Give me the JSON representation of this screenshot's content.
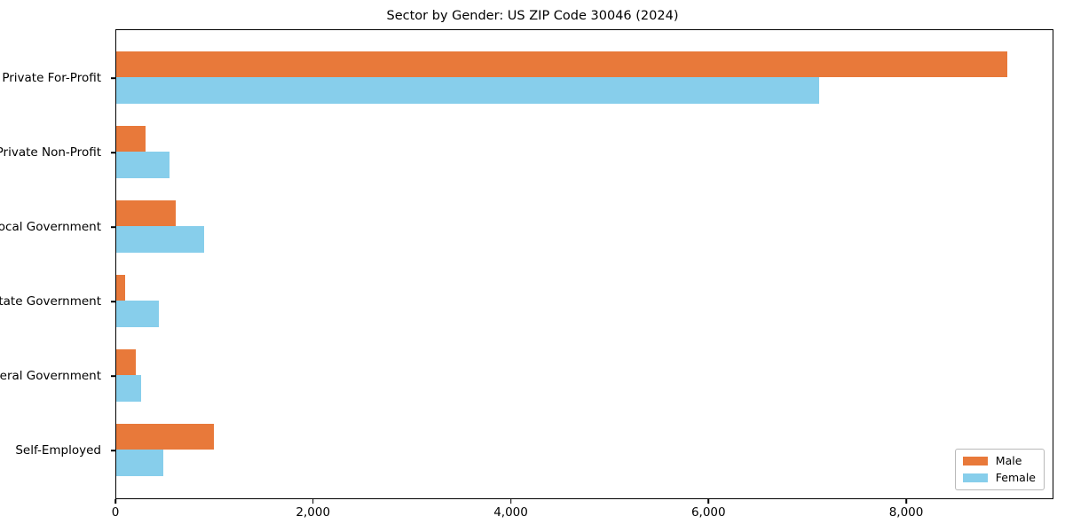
{
  "title": "Sector by Gender: US ZIP Code 30046 (2024)",
  "colors": {
    "male": "#e8793a",
    "female": "#87ceeb",
    "axis": "#000000",
    "background": "#ffffff",
    "legend_border": "#b9b9b9"
  },
  "legend": {
    "position": "lower-right",
    "items": [
      {
        "label": "Male",
        "color": "#e8793a"
      },
      {
        "label": "Female",
        "color": "#87ceeb"
      }
    ]
  },
  "chart_data": {
    "type": "bar",
    "orientation": "horizontal",
    "title": "Sector by Gender: US ZIP Code 30046 (2024)",
    "categories": [
      "Private For-Profit",
      "Private Non-Profit",
      "Local Government",
      "State Government",
      "Federal Government",
      "Self-Employed"
    ],
    "series": [
      {
        "name": "Male",
        "color": "#e8793a",
        "values": [
          9030,
          295,
          600,
          90,
          195,
          990
        ]
      },
      {
        "name": "Female",
        "color": "#87ceeb",
        "values": [
          7120,
          540,
          890,
          430,
          250,
          480
        ]
      }
    ],
    "xlabel": "",
    "ylabel": "",
    "xlim": [
      0,
      9490
    ],
    "xticks": [
      0,
      2000,
      4000,
      6000,
      8000
    ],
    "xtick_labels": [
      "0",
      "2,000",
      "4,000",
      "6,000",
      "8,000"
    ],
    "grid": false,
    "legend_position": "lower right"
  }
}
